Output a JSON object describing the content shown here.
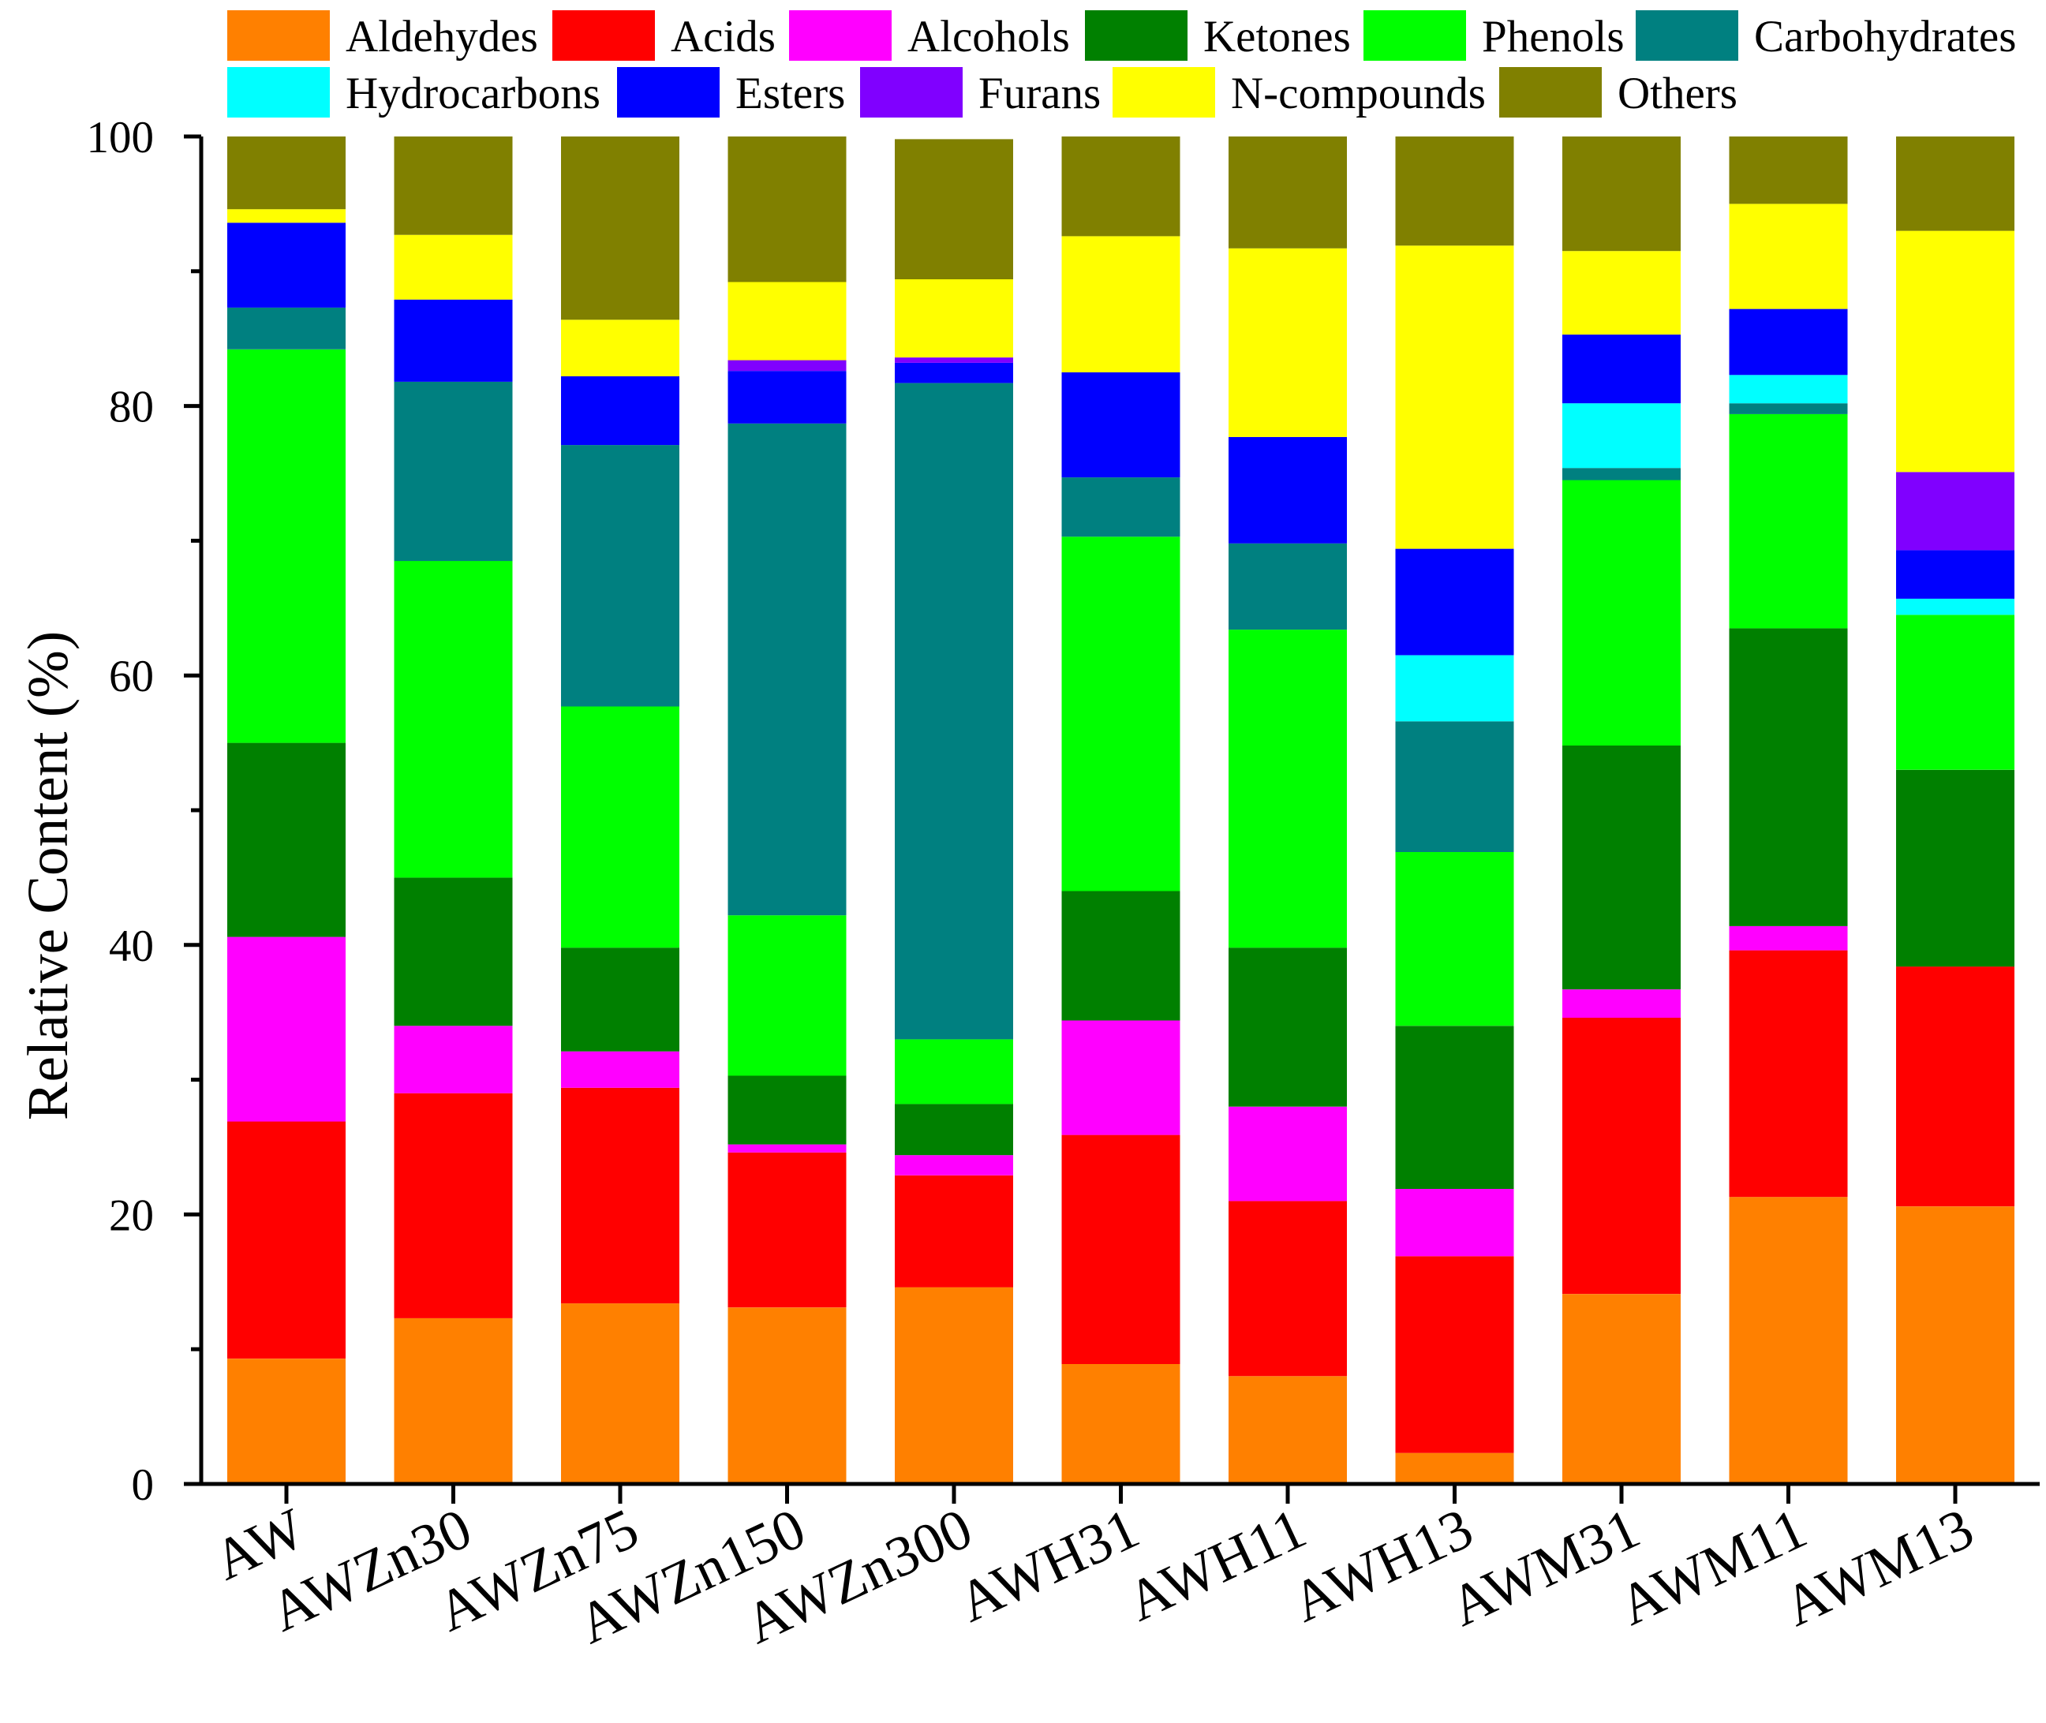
{
  "chart_data": {
    "type": "bar",
    "stacked": true,
    "title": "",
    "xlabel": "",
    "ylabel": "Relative Content (%)",
    "ylim": [
      0,
      100
    ],
    "yticks": [
      0,
      20,
      40,
      60,
      80,
      100
    ],
    "grid": false,
    "legend_position": "top",
    "categories": [
      "AW",
      "AWZn30",
      "AWZn75",
      "AWZn150",
      "AWZn300",
      "AWH31",
      "AWH11",
      "AWH13",
      "AWM31",
      "AWM11",
      "AWM13"
    ],
    "series": [
      {
        "name": "Aldehydes",
        "color": "#FF8000",
        "values": [
          9.3,
          12.3,
          13.4,
          13.1,
          14.6,
          8.9,
          8.0,
          2.3,
          14.1,
          21.3,
          20.6
        ]
      },
      {
        "name": "Acids",
        "color": "#FF0000",
        "values": [
          17.6,
          16.7,
          16.0,
          11.5,
          8.3,
          17.0,
          13.0,
          14.6,
          20.5,
          18.3,
          17.8
        ]
      },
      {
        "name": "Alcohols",
        "color": "#FF00FF",
        "values": [
          13.7,
          5.0,
          2.7,
          0.6,
          1.5,
          8.5,
          7.0,
          5.0,
          2.1,
          1.8,
          0.0
        ]
      },
      {
        "name": "Ketones",
        "color": "#008000",
        "values": [
          14.4,
          11.0,
          7.7,
          5.1,
          3.8,
          9.6,
          11.8,
          12.1,
          18.1,
          22.1,
          14.6
        ]
      },
      {
        "name": "Phenols",
        "color": "#00FF00",
        "values": [
          29.2,
          23.5,
          17.9,
          11.9,
          4.8,
          26.3,
          23.6,
          12.9,
          19.7,
          15.9,
          11.5
        ]
      },
      {
        "name": "Carbohydrates",
        "color": "#008080",
        "values": [
          3.1,
          13.3,
          19.4,
          36.5,
          48.7,
          4.4,
          6.4,
          9.7,
          0.9,
          0.8,
          0.0
        ]
      },
      {
        "name": "Hydrocarbons",
        "color": "#00FFFF",
        "values": [
          0.0,
          0.0,
          0.0,
          0.0,
          0.0,
          0.0,
          0.0,
          4.9,
          4.8,
          2.1,
          1.2
        ]
      },
      {
        "name": "Esters",
        "color": "#0000FF",
        "values": [
          6.3,
          6.1,
          5.1,
          3.9,
          1.5,
          7.8,
          7.9,
          7.9,
          5.1,
          4.9,
          3.6
        ]
      },
      {
        "name": "Furans",
        "color": "#8000FF",
        "values": [
          0.0,
          0.0,
          0.0,
          0.8,
          0.4,
          0.0,
          0.0,
          0.0,
          0.0,
          0.0,
          5.8
        ]
      },
      {
        "name": "N-compounds",
        "color": "#FFFF00",
        "values": [
          1.0,
          4.8,
          4.2,
          5.8,
          5.8,
          10.1,
          14.0,
          22.5,
          6.2,
          7.8,
          17.9
        ]
      },
      {
        "name": "Others",
        "color": "#808000",
        "values": [
          5.4,
          7.3,
          13.6,
          10.8,
          10.4,
          7.4,
          8.3,
          8.1,
          8.5,
          5.0,
          7.0
        ]
      }
    ]
  }
}
